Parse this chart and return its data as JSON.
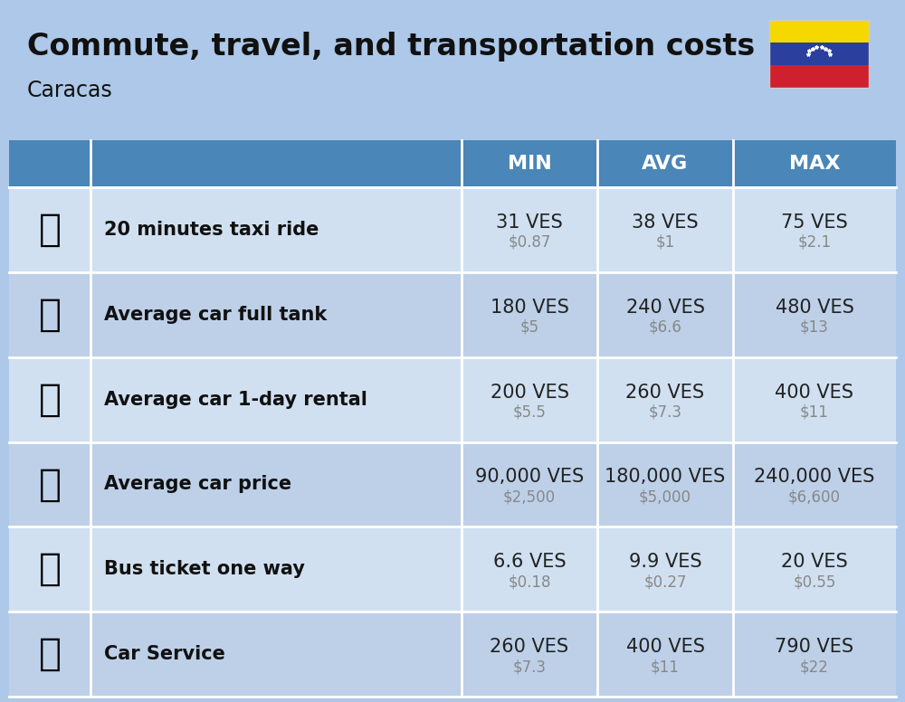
{
  "title": "Commute, travel, and transportation costs",
  "subtitle": "Caracas",
  "bg_color": "#adc8e8",
  "header_color": "#4a86b8",
  "header_text_color": "#ffffff",
  "row_colors": [
    "#d0e0f0",
    "#bdd0e8"
  ],
  "icon_col_color_light": "#c0d5ea",
  "icon_col_color_dark": "#afc8e0",
  "col_headers": [
    "MIN",
    "AVG",
    "MAX"
  ],
  "rows": [
    {
      "label": "20 minutes taxi ride",
      "min_ves": "31 VES",
      "min_usd": "$0.87",
      "avg_ves": "38 VES",
      "avg_usd": "$1",
      "max_ves": "75 VES",
      "max_usd": "$2.1"
    },
    {
      "label": "Average car full tank",
      "min_ves": "180 VES",
      "min_usd": "$5",
      "avg_ves": "240 VES",
      "avg_usd": "$6.6",
      "max_ves": "480 VES",
      "max_usd": "$13"
    },
    {
      "label": "Average car 1-day rental",
      "min_ves": "200 VES",
      "min_usd": "$5.5",
      "avg_ves": "260 VES",
      "avg_usd": "$7.3",
      "max_ves": "400 VES",
      "max_usd": "$11"
    },
    {
      "label": "Average car price",
      "min_ves": "90,000 VES",
      "min_usd": "$2,500",
      "avg_ves": "180,000 VES",
      "avg_usd": "$5,000",
      "max_ves": "240,000 VES",
      "max_usd": "$6,600"
    },
    {
      "label": "Bus ticket one way",
      "min_ves": "6.6 VES",
      "min_usd": "$0.18",
      "avg_ves": "9.9 VES",
      "avg_usd": "$0.27",
      "max_ves": "20 VES",
      "max_usd": "$0.55"
    },
    {
      "label": "Car Service",
      "min_ves": "260 VES",
      "min_usd": "$7.3",
      "avg_ves": "400 VES",
      "avg_usd": "$11",
      "max_ves": "790 VES",
      "max_usd": "$22"
    }
  ],
  "icon_emojis": [
    "🚕",
    "⛽",
    "🚙",
    "🚗",
    "🚌",
    "🔧"
  ],
  "flag_colors": [
    "#f5d800",
    "#2a3f9e",
    "#cf2030"
  ],
  "title_fontsize": 24,
  "subtitle_fontsize": 17,
  "header_fontsize": 16,
  "label_fontsize": 15,
  "ves_fontsize": 15,
  "usd_fontsize": 12,
  "icon_fontsize": 30
}
